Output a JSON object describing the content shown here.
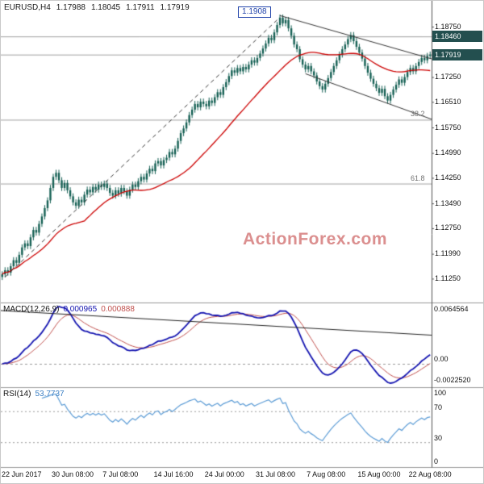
{
  "watermark": "ActionForex.com",
  "header": {
    "symbol_period": "EURUSD,H4",
    "open": "1.17988",
    "high": "1.18045",
    "low": "1.17911",
    "close": "1.17919"
  },
  "colors": {
    "candle": "#156054",
    "ma": "#cc0000",
    "macd_line": "#1515b0",
    "signal_line": "#c0504d",
    "rsi_line": "#5b9bd5",
    "tag_bg": "#234f4f",
    "annotation": "#2244aa",
    "watermark": "#db8f8f",
    "trend_line": "#333333",
    "level_line": "#888888"
  },
  "chart_data": [
    {
      "type": "candlestick",
      "title": "EURUSD,H4",
      "ylim": [
        1.1054,
        1.1952
      ],
      "wick": 0.0009,
      "first_open": 1.113,
      "ma_period": 30,
      "closes": [
        1.1138,
        1.115,
        1.1143,
        1.1162,
        1.118,
        1.1172,
        1.1196,
        1.1218,
        1.123,
        1.1222,
        1.1248,
        1.127,
        1.1262,
        1.1288,
        1.131,
        1.1335,
        1.1358,
        1.1395,
        1.1428,
        1.144,
        1.1418,
        1.1395,
        1.141,
        1.1388,
        1.137,
        1.1352,
        1.1342,
        1.136,
        1.1352,
        1.1375,
        1.139,
        1.1382,
        1.1398,
        1.139,
        1.1405,
        1.1398,
        1.1408,
        1.1395,
        1.138,
        1.1372,
        1.1388,
        1.1378,
        1.1395,
        1.1385,
        1.1372,
        1.139,
        1.1405,
        1.1398,
        1.1415,
        1.1428,
        1.142,
        1.1438,
        1.1452,
        1.1445,
        1.1468,
        1.1475,
        1.1462,
        1.1478,
        1.1485,
        1.1502,
        1.1495,
        1.1512,
        1.1535,
        1.1558,
        1.1572,
        1.159,
        1.1612,
        1.1628,
        1.1645,
        1.1635,
        1.1652,
        1.1645,
        1.1638,
        1.1655,
        1.1648,
        1.1665,
        1.168,
        1.1672,
        1.1695,
        1.171,
        1.1728,
        1.1745,
        1.1738,
        1.1752,
        1.1742,
        1.1755,
        1.1748,
        1.1762,
        1.1775,
        1.1768,
        1.1782,
        1.1795,
        1.181,
        1.1825,
        1.1842,
        1.1835,
        1.1858,
        1.188,
        1.1902,
        1.1885,
        1.1895,
        1.187,
        1.1848,
        1.1822,
        1.1808,
        1.1778,
        1.1762,
        1.1748,
        1.1758,
        1.1742,
        1.173,
        1.1712,
        1.1698,
        1.1688,
        1.1705,
        1.1722,
        1.174,
        1.1758,
        1.1775,
        1.1792,
        1.1808,
        1.1822,
        1.1838,
        1.185,
        1.1832,
        1.1815,
        1.1798,
        1.178,
        1.1758,
        1.1738,
        1.172,
        1.1705,
        1.1692,
        1.1678,
        1.169,
        1.1668,
        1.1655,
        1.1672,
        1.1688,
        1.1702,
        1.1718,
        1.1708,
        1.1725,
        1.174,
        1.1752,
        1.1742,
        1.1758,
        1.177,
        1.1782,
        1.1775,
        1.1788,
        1.17919
      ],
      "x_labels": [
        "22 Jun 2017",
        "30 Jun 08:00",
        "7 Jul 08:00",
        "14 Jul 16:00",
        "24 Jul 00:00",
        "31 Jul 08:00",
        "7 Aug 08:00",
        "15 Aug 00:00",
        "22 Aug 08:00"
      ],
      "x_label_bars": [
        0,
        18,
        36,
        54,
        72,
        90,
        108,
        126,
        144
      ],
      "price_ticks": [
        {
          "label": "1.18750",
          "price": 1.1875,
          "boxed": false
        },
        {
          "label": "1.18460",
          "price": 1.1846,
          "boxed": true
        },
        {
          "label": "1.17919",
          "price": 1.17919,
          "boxed": true
        },
        {
          "label": "1.17250",
          "price": 1.1725,
          "boxed": false
        },
        {
          "label": "1.16510",
          "price": 1.1651,
          "boxed": false
        },
        {
          "label": "1.15750",
          "price": 1.1575,
          "boxed": false
        },
        {
          "label": "1.14990",
          "price": 1.1499,
          "boxed": false
        },
        {
          "label": "1.14250",
          "price": 1.1425,
          "boxed": false
        },
        {
          "label": "1.13490",
          "price": 1.1349,
          "boxed": false
        },
        {
          "label": "1.12750",
          "price": 1.1275,
          "boxed": false
        },
        {
          "label": "1.11990",
          "price": 1.1199,
          "boxed": false
        },
        {
          "label": "1.11250",
          "price": 1.1125,
          "boxed": false
        }
      ],
      "hlines": [
        {
          "price": 1.1846,
          "label": ""
        },
        {
          "price": 1.17919,
          "label": ""
        },
        {
          "price": 1.1598,
          "label": "38.2"
        },
        {
          "price": 1.1408,
          "label": "61.8"
        }
      ],
      "dashed_trendline": {
        "bar1": 1,
        "price1": 1.113,
        "bar2": 97,
        "price2": 1.1895
      },
      "channel_upper": {
        "bar1": 98,
        "price1": 1.1908,
        "bar2": 152,
        "price2": 1.1778
      },
      "channel_lower": {
        "bar1": 107,
        "price1": 1.1735,
        "bar2": 152,
        "price2": 1.1598
      },
      "peak_annotation": {
        "label": "1.1908",
        "bar": 98,
        "price": 1.1908
      }
    },
    {
      "type": "line",
      "name": "MACD",
      "label": "MACD(12,26,9)",
      "value_main": "0.000965",
      "value_signal": "0.000888",
      "fast": 12,
      "slow": 26,
      "signal_period": 9,
      "axis_labels": [
        "0.0064564",
        "0.00",
        "-0.0022520"
      ],
      "trendline_frac": {
        "f1": 0.93,
        "f2": 0.5
      }
    },
    {
      "type": "line",
      "name": "RSI",
      "label": "RSI(14)",
      "value": "53.7737",
      "period": 14,
      "levels": [
        100,
        70,
        30,
        0
      ],
      "dashed_levels": [
        70,
        30
      ]
    }
  ]
}
